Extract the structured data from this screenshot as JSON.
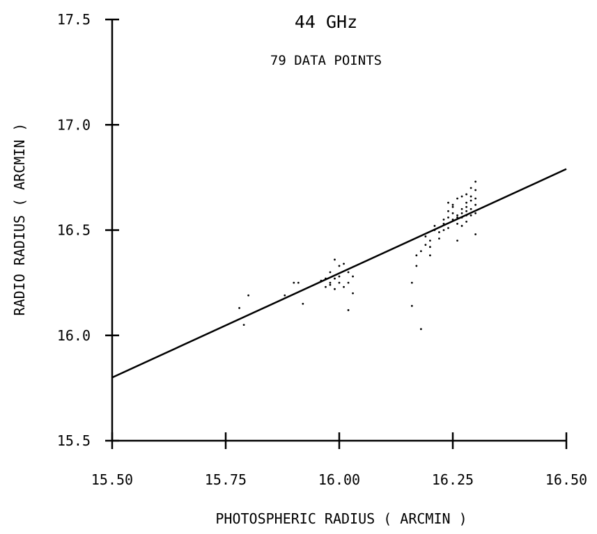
{
  "chart_data": {
    "type": "scatter",
    "title": "44 GHz",
    "subtitle": "79 DATA POINTS",
    "xlabel": "PHOTOSPHERIC RADIUS  ( ARCMIN )",
    "ylabel": "RADIO RADIUS  ( ARCMIN )",
    "xlim": [
      15.5,
      16.5
    ],
    "ylim": [
      15.5,
      17.5
    ],
    "x_ticks": [
      15.5,
      15.75,
      16.0,
      16.25,
      16.5
    ],
    "x_tick_labels": [
      "15.50",
      "15.75",
      "16.00",
      "16.25",
      "16.50"
    ],
    "y_ticks": [
      15.5,
      16.0,
      16.5,
      17.0,
      17.5
    ],
    "y_tick_labels": [
      "15.5",
      "16.0",
      "16.5",
      "17.0",
      "17.5"
    ],
    "grid": false,
    "fit_line": {
      "x": [
        15.5,
        16.5
      ],
      "y": [
        15.8,
        16.79
      ]
    },
    "colors": {
      "ink": "#000000"
    },
    "points": [
      [
        15.78,
        16.13
      ],
      [
        15.79,
        16.05
      ],
      [
        15.8,
        16.19
      ],
      [
        15.88,
        16.19
      ],
      [
        15.9,
        16.25
      ],
      [
        15.91,
        16.25
      ],
      [
        15.92,
        16.15
      ],
      [
        15.97,
        16.23
      ],
      [
        15.97,
        16.27
      ],
      [
        15.98,
        16.25
      ],
      [
        15.98,
        16.3
      ],
      [
        15.99,
        16.36
      ],
      [
        15.99,
        16.22
      ],
      [
        15.99,
        16.27
      ],
      [
        16.0,
        16.33
      ],
      [
        16.0,
        16.25
      ],
      [
        16.0,
        16.28
      ],
      [
        16.01,
        16.34
      ],
      [
        16.01,
        16.23
      ],
      [
        16.02,
        16.3
      ],
      [
        16.02,
        16.12
      ],
      [
        16.02,
        16.25
      ],
      [
        16.03,
        16.2
      ],
      [
        16.03,
        16.28
      ],
      [
        15.98,
        16.24
      ],
      [
        15.96,
        16.26
      ],
      [
        16.16,
        16.25
      ],
      [
        16.16,
        16.14
      ],
      [
        16.17,
        16.38
      ],
      [
        16.17,
        16.33
      ],
      [
        16.18,
        16.03
      ],
      [
        16.18,
        16.4
      ],
      [
        16.19,
        16.43
      ],
      [
        16.19,
        16.47
      ],
      [
        16.2,
        16.45
      ],
      [
        16.2,
        16.42
      ],
      [
        16.2,
        16.38
      ],
      [
        16.21,
        16.5
      ],
      [
        16.21,
        16.52
      ],
      [
        16.22,
        16.46
      ],
      [
        16.23,
        16.55
      ],
      [
        16.23,
        16.53
      ],
      [
        16.24,
        16.59
      ],
      [
        16.24,
        16.56
      ],
      [
        16.24,
        16.51
      ],
      [
        16.25,
        16.58
      ],
      [
        16.25,
        16.61
      ],
      [
        16.25,
        16.55
      ],
      [
        16.26,
        16.65
      ],
      [
        16.26,
        16.57
      ],
      [
        16.26,
        16.53
      ],
      [
        16.26,
        16.45
      ],
      [
        16.27,
        16.6
      ],
      [
        16.27,
        16.56
      ],
      [
        16.27,
        16.58
      ],
      [
        16.27,
        16.52
      ],
      [
        16.28,
        16.63
      ],
      [
        16.28,
        16.59
      ],
      [
        16.28,
        16.67
      ],
      [
        16.28,
        16.61
      ],
      [
        16.28,
        16.54
      ],
      [
        16.29,
        16.64
      ],
      [
        16.29,
        16.6
      ],
      [
        16.29,
        16.57
      ],
      [
        16.29,
        16.66
      ],
      [
        16.29,
        16.7
      ],
      [
        16.3,
        16.62
      ],
      [
        16.3,
        16.65
      ],
      [
        16.3,
        16.69
      ],
      [
        16.3,
        16.73
      ],
      [
        16.3,
        16.58
      ],
      [
        16.3,
        16.48
      ],
      [
        16.22,
        16.49
      ],
      [
        16.23,
        16.5
      ],
      [
        16.24,
        16.63
      ],
      [
        16.25,
        16.62
      ],
      [
        16.26,
        16.56
      ],
      [
        16.27,
        16.66
      ],
      [
        16.28,
        16.57
      ]
    ]
  }
}
